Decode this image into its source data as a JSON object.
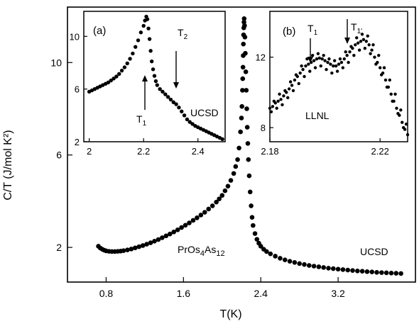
{
  "chart_data": [
    {
      "id": "main",
      "type": "scatter",
      "xlabel": "T(K)",
      "ylabel": "C/T (J/mol K²)",
      "xlim": [
        0.4,
        4.0
      ],
      "ylim": [
        0.5,
        12.4
      ],
      "xticks": [
        "0.8",
        "1.6",
        "2.4",
        "3.2"
      ],
      "yticks": [
        "2",
        "6",
        "10"
      ],
      "xtick_values": [
        0.8,
        1.6,
        2.4,
        3.2
      ],
      "ytick_values": [
        2,
        6,
        10
      ],
      "annotations": {
        "compound": {
          "base": "PrOs",
          "sub1": "4",
          "mid": "As",
          "sub2": "12"
        },
        "source": "UCSD"
      },
      "points": [
        [
          0.72,
          2.05
        ],
        [
          0.74,
          1.97
        ],
        [
          0.76,
          1.92
        ],
        [
          0.78,
          1.88
        ],
        [
          0.8,
          1.85
        ],
        [
          0.83,
          1.83
        ],
        [
          0.86,
          1.82
        ],
        [
          0.89,
          1.82
        ],
        [
          0.92,
          1.83
        ],
        [
          0.95,
          1.84
        ],
        [
          0.98,
          1.86
        ],
        [
          1.02,
          1.89
        ],
        [
          1.06,
          1.93
        ],
        [
          1.1,
          1.98
        ],
        [
          1.14,
          2.03
        ],
        [
          1.18,
          2.08
        ],
        [
          1.22,
          2.14
        ],
        [
          1.26,
          2.2
        ],
        [
          1.3,
          2.27
        ],
        [
          1.34,
          2.34
        ],
        [
          1.38,
          2.42
        ],
        [
          1.42,
          2.5
        ],
        [
          1.46,
          2.58
        ],
        [
          1.5,
          2.67
        ],
        [
          1.54,
          2.76
        ],
        [
          1.58,
          2.86
        ],
        [
          1.62,
          2.96
        ],
        [
          1.66,
          3.06
        ],
        [
          1.7,
          3.17
        ],
        [
          1.74,
          3.28
        ],
        [
          1.78,
          3.4
        ],
        [
          1.82,
          3.52
        ],
        [
          1.86,
          3.66
        ],
        [
          1.9,
          3.8
        ],
        [
          1.94,
          3.96
        ],
        [
          1.97,
          4.1
        ],
        [
          2.0,
          4.25
        ],
        [
          2.03,
          4.45
        ],
        [
          2.06,
          4.65
        ],
        [
          2.09,
          4.9
        ],
        [
          2.12,
          5.2
        ],
        [
          2.14,
          5.5
        ],
        [
          2.16,
          5.8
        ],
        [
          2.175,
          6.3
        ],
        [
          2.19,
          7.0
        ],
        [
          2.2,
          7.6
        ],
        [
          2.205,
          8.1
        ],
        [
          2.21,
          8.8
        ],
        [
          2.213,
          9.3
        ],
        [
          2.216,
          9.8
        ],
        [
          2.218,
          10.3
        ],
        [
          2.22,
          10.8
        ],
        [
          2.222,
          11.2
        ],
        [
          2.224,
          11.5
        ],
        [
          2.226,
          11.75
        ],
        [
          2.228,
          11.9
        ],
        [
          2.232,
          11.6
        ],
        [
          2.236,
          11.1
        ],
        [
          2.24,
          10.4
        ],
        [
          2.245,
          9.6
        ],
        [
          2.25,
          8.8
        ],
        [
          2.255,
          8.0
        ],
        [
          2.26,
          7.2
        ],
        [
          2.266,
          6.5
        ],
        [
          2.272,
          5.8
        ],
        [
          2.28,
          5.1
        ],
        [
          2.29,
          4.4
        ],
        [
          2.3,
          3.8
        ],
        [
          2.31,
          3.3
        ],
        [
          2.32,
          2.95
        ],
        [
          2.34,
          2.6
        ],
        [
          2.36,
          2.35
        ],
        [
          2.38,
          2.18
        ],
        [
          2.4,
          2.05
        ],
        [
          2.43,
          1.92
        ],
        [
          2.46,
          1.82
        ],
        [
          2.5,
          1.72
        ],
        [
          2.55,
          1.62
        ],
        [
          2.6,
          1.53
        ],
        [
          2.65,
          1.46
        ],
        [
          2.7,
          1.4
        ],
        [
          2.75,
          1.35
        ],
        [
          2.8,
          1.3
        ],
        [
          2.85,
          1.26
        ],
        [
          2.9,
          1.22
        ],
        [
          2.95,
          1.19
        ],
        [
          3.0,
          1.16
        ],
        [
          3.05,
          1.13
        ],
        [
          3.1,
          1.1
        ],
        [
          3.15,
          1.08
        ],
        [
          3.2,
          1.06
        ],
        [
          3.25,
          1.04
        ],
        [
          3.3,
          1.02
        ],
        [
          3.35,
          1.0
        ],
        [
          3.4,
          0.98
        ],
        [
          3.45,
          0.97
        ],
        [
          3.5,
          0.95
        ],
        [
          3.55,
          0.94
        ],
        [
          3.6,
          0.92
        ],
        [
          3.65,
          0.91
        ],
        [
          3.7,
          0.9
        ],
        [
          3.75,
          0.89
        ],
        [
          3.8,
          0.88
        ],
        [
          3.85,
          0.87
        ]
      ]
    },
    {
      "id": "inset_a",
      "type": "scatter",
      "panel": "(a)",
      "xlim": [
        1.98,
        2.5
      ],
      "ylim": [
        2,
        11.9
      ],
      "xticks": [
        "2",
        "2.2",
        "2.4"
      ],
      "yticks": [
        "2",
        "6",
        "10"
      ],
      "xtick_values": [
        2.0,
        2.2,
        2.4
      ],
      "ytick_values": [
        2,
        6,
        10
      ],
      "annotations": {
        "T1": "T",
        "T1_sub": "1",
        "T2": "T",
        "T2_sub": "2",
        "source": "UCSD"
      },
      "points": [
        [
          2.0,
          5.8
        ],
        [
          2.01,
          5.9
        ],
        [
          2.02,
          6.0
        ],
        [
          2.03,
          6.1
        ],
        [
          2.04,
          6.2
        ],
        [
          2.05,
          6.3
        ],
        [
          2.06,
          6.4
        ],
        [
          2.07,
          6.5
        ],
        [
          2.08,
          6.65
        ],
        [
          2.09,
          6.8
        ],
        [
          2.1,
          6.95
        ],
        [
          2.11,
          7.15
        ],
        [
          2.12,
          7.4
        ],
        [
          2.13,
          7.65
        ],
        [
          2.14,
          7.95
        ],
        [
          2.15,
          8.3
        ],
        [
          2.16,
          8.7
        ],
        [
          2.17,
          9.2
        ],
        [
          2.18,
          9.7
        ],
        [
          2.19,
          10.3
        ],
        [
          2.2,
          10.8
        ],
        [
          2.205,
          11.2
        ],
        [
          2.21,
          11.5
        ],
        [
          2.214,
          11.3
        ],
        [
          2.218,
          10.6
        ],
        [
          2.222,
          9.8
        ],
        [
          2.226,
          8.9
        ],
        [
          2.23,
          8.1
        ],
        [
          2.235,
          7.5
        ],
        [
          2.24,
          7.0
        ],
        [
          2.245,
          6.6
        ],
        [
          2.25,
          6.3
        ],
        [
          2.26,
          6.0
        ],
        [
          2.27,
          5.8
        ],
        [
          2.28,
          5.6
        ],
        [
          2.29,
          5.4
        ],
        [
          2.3,
          5.2
        ],
        [
          2.31,
          5.0
        ],
        [
          2.32,
          4.85
        ],
        [
          2.33,
          4.6
        ],
        [
          2.34,
          4.3
        ],
        [
          2.35,
          4.0
        ],
        [
          2.36,
          3.7
        ],
        [
          2.37,
          3.5
        ],
        [
          2.38,
          3.35
        ],
        [
          2.39,
          3.2
        ],
        [
          2.4,
          3.1
        ],
        [
          2.41,
          3.0
        ],
        [
          2.42,
          2.9
        ],
        [
          2.43,
          2.8
        ],
        [
          2.44,
          2.7
        ],
        [
          2.45,
          2.6
        ],
        [
          2.46,
          2.5
        ],
        [
          2.47,
          2.4
        ],
        [
          2.48,
          2.3
        ],
        [
          2.49,
          2.2
        ]
      ]
    },
    {
      "id": "inset_b",
      "type": "scatter",
      "panel": "(b)",
      "xlim": [
        2.18,
        2.23
      ],
      "ylim": [
        7.2,
        14.6
      ],
      "xticks": [
        "2.18",
        "2.22"
      ],
      "yticks": [
        "8",
        "12"
      ],
      "xtick_values": [
        2.18,
        2.22
      ],
      "ytick_values": [
        8,
        12
      ],
      "annotations": {
        "T1": "T",
        "T1_sub": "1",
        "T1p": "T",
        "T1p_sub": "1'",
        "source": "LLNL"
      },
      "points": [
        [
          2.18,
          9.1
        ],
        [
          2.181,
          9.2
        ],
        [
          2.182,
          9.4
        ],
        [
          2.183,
          9.5
        ],
        [
          2.184,
          9.6
        ],
        [
          2.185,
          9.8
        ],
        [
          2.186,
          10.0
        ],
        [
          2.187,
          10.2
        ],
        [
          2.188,
          10.4
        ],
        [
          2.189,
          10.7
        ],
        [
          2.19,
          10.9
        ],
        [
          2.191,
          11.1
        ],
        [
          2.192,
          11.3
        ],
        [
          2.193,
          11.5
        ],
        [
          2.194,
          11.6
        ],
        [
          2.195,
          11.7
        ],
        [
          2.196,
          11.8
        ],
        [
          2.197,
          11.9
        ],
        [
          2.198,
          11.95
        ],
        [
          2.199,
          11.9
        ],
        [
          2.2,
          11.8
        ],
        [
          2.201,
          11.7
        ],
        [
          2.202,
          11.6
        ],
        [
          2.203,
          11.5
        ],
        [
          2.204,
          11.5
        ],
        [
          2.205,
          11.6
        ],
        [
          2.206,
          11.7
        ],
        [
          2.207,
          11.9
        ],
        [
          2.208,
          12.1
        ],
        [
          2.209,
          12.3
        ],
        [
          2.21,
          12.5
        ],
        [
          2.211,
          12.7
        ],
        [
          2.212,
          12.8
        ],
        [
          2.213,
          12.9
        ],
        [
          2.214,
          13.0
        ],
        [
          2.215,
          12.9
        ],
        [
          2.216,
          12.7
        ],
        [
          2.217,
          12.4
        ],
        [
          2.218,
          12.0
        ],
        [
          2.219,
          11.7
        ],
        [
          2.22,
          11.4
        ],
        [
          2.221,
          11.1
        ],
        [
          2.222,
          10.7
        ],
        [
          2.223,
          10.3
        ],
        [
          2.224,
          9.9
        ],
        [
          2.225,
          9.5
        ],
        [
          2.226,
          9.1
        ],
        [
          2.227,
          8.7
        ],
        [
          2.228,
          8.3
        ],
        [
          2.229,
          7.9
        ],
        [
          2.23,
          7.6
        ]
      ],
      "scatter_points": [
        [
          2.1805,
          8.9
        ],
        [
          2.1815,
          9.5
        ],
        [
          2.1825,
          9.1
        ],
        [
          2.1835,
          9.9
        ],
        [
          2.1845,
          9.3
        ],
        [
          2.1855,
          10.1
        ],
        [
          2.1865,
          9.7
        ],
        [
          2.1875,
          10.6
        ],
        [
          2.1885,
          10.1
        ],
        [
          2.1895,
          11.0
        ],
        [
          2.1905,
          10.5
        ],
        [
          2.1915,
          11.5
        ],
        [
          2.1925,
          10.9
        ],
        [
          2.1935,
          11.9
        ],
        [
          2.1945,
          11.2
        ],
        [
          2.1955,
          12.1
        ],
        [
          2.1965,
          11.4
        ],
        [
          2.1975,
          12.2
        ],
        [
          2.1985,
          11.5
        ],
        [
          2.1995,
          12.1
        ],
        [
          2.2005,
          11.3
        ],
        [
          2.2015,
          11.9
        ],
        [
          2.2025,
          11.1
        ],
        [
          2.2035,
          11.8
        ],
        [
          2.2045,
          11.2
        ],
        [
          2.2055,
          11.9
        ],
        [
          2.2065,
          11.4
        ],
        [
          2.2075,
          12.3
        ],
        [
          2.2085,
          11.7
        ],
        [
          2.2095,
          12.6
        ],
        [
          2.2105,
          12.1
        ],
        [
          2.2115,
          13.1
        ],
        [
          2.2125,
          12.4
        ],
        [
          2.2135,
          13.3
        ],
        [
          2.2145,
          12.5
        ],
        [
          2.2155,
          13.2
        ],
        [
          2.2165,
          12.2
        ],
        [
          2.2175,
          12.7
        ],
        [
          2.2185,
          11.6
        ],
        [
          2.2195,
          12.1
        ],
        [
          2.2205,
          11.0
        ],
        [
          2.2215,
          11.4
        ],
        [
          2.2225,
          10.3
        ],
        [
          2.2235,
          10.7
        ],
        [
          2.2245,
          9.5
        ],
        [
          2.2255,
          9.9
        ],
        [
          2.2265,
          8.8
        ],
        [
          2.2275,
          9.0
        ],
        [
          2.2285,
          8.0
        ],
        [
          2.2295,
          8.2
        ]
      ]
    }
  ]
}
